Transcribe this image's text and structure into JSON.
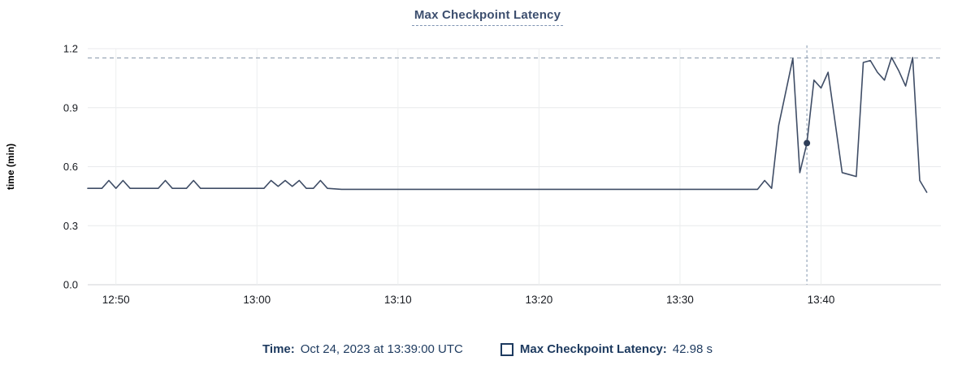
{
  "title": "Max Checkpoint Latency",
  "legend": {
    "time_label": "Time:",
    "time_value": "Oct 24, 2023 at 13:39:00 UTC",
    "series_label": "Max Checkpoint Latency:",
    "series_value": "42.98 s",
    "swatch_style": "hollow-square"
  },
  "colors": {
    "series_line": "#3f4d66",
    "highlight_dot": "#2e3e59",
    "title_text": "#3c4e6e",
    "legend_text": "#1d3a5f",
    "tick_text": "#16191f",
    "grid_horizontal": "#e8eaec",
    "grid_vertical": "#eceeef",
    "axis_line": "#d0d3d6",
    "threshold_dash": "#8494a7",
    "crosshair_dash": "#9fadbf"
  },
  "chart_data": {
    "type": "line",
    "title": "Max Checkpoint Latency",
    "xlabel": "",
    "ylabel": "time (min)",
    "ylim": [
      0,
      1.2
    ],
    "yticks": [
      {
        "value": 0.0,
        "label": "0.0"
      },
      {
        "value": 0.3,
        "label": "0.3"
      },
      {
        "value": 0.6,
        "label": "0.6"
      },
      {
        "value": 0.9,
        "label": "0.9"
      },
      {
        "value": 1.2,
        "label": "1.2"
      }
    ],
    "xticks": [
      {
        "time": "12:50:00",
        "label": "12:50"
      },
      {
        "time": "13:00:00",
        "label": "13:00"
      },
      {
        "time": "13:10:00",
        "label": "13:10"
      },
      {
        "time": "13:20:00",
        "label": "13:20"
      },
      {
        "time": "13:30:00",
        "label": "13:30"
      },
      {
        "time": "13:40:00",
        "label": "13:40"
      }
    ],
    "x_domain": {
      "start": "12:48:00",
      "end": "13:48:30"
    },
    "grid": true,
    "legend_position": "bottom",
    "threshold_line_value": 1.153,
    "crosshair_time": "13:39:00",
    "highlight_point": {
      "time": "13:39:00",
      "value": 0.72,
      "display": "42.98 s"
    },
    "series": [
      {
        "name": "Max Checkpoint Latency",
        "unit": "min",
        "points": [
          [
            "12:48:00",
            0.49
          ],
          [
            "12:49:00",
            0.49
          ],
          [
            "12:49:30",
            0.53
          ],
          [
            "12:50:00",
            0.49
          ],
          [
            "12:50:30",
            0.53
          ],
          [
            "12:51:00",
            0.49
          ],
          [
            "12:53:00",
            0.49
          ],
          [
            "12:53:30",
            0.53
          ],
          [
            "12:54:00",
            0.49
          ],
          [
            "12:55:00",
            0.49
          ],
          [
            "12:55:30",
            0.53
          ],
          [
            "12:56:00",
            0.49
          ],
          [
            "13:00:30",
            0.49
          ],
          [
            "13:01:00",
            0.53
          ],
          [
            "13:01:30",
            0.5
          ],
          [
            "13:02:00",
            0.53
          ],
          [
            "13:02:30",
            0.5
          ],
          [
            "13:03:00",
            0.53
          ],
          [
            "13:03:30",
            0.49
          ],
          [
            "13:04:00",
            0.49
          ],
          [
            "13:04:30",
            0.53
          ],
          [
            "13:05:00",
            0.49
          ],
          [
            "13:06:00",
            0.485
          ],
          [
            "13:35:30",
            0.485
          ],
          [
            "13:36:00",
            0.53
          ],
          [
            "13:36:30",
            0.49
          ],
          [
            "13:37:00",
            0.81
          ],
          [
            "13:38:00",
            1.15
          ],
          [
            "13:38:30",
            0.57
          ],
          [
            "13:39:00",
            0.72
          ],
          [
            "13:39:30",
            1.04
          ],
          [
            "13:40:00",
            1.0
          ],
          [
            "13:40:30",
            1.08
          ],
          [
            "13:41:30",
            0.57
          ],
          [
            "13:42:00",
            0.56
          ],
          [
            "13:42:30",
            0.55
          ],
          [
            "13:43:00",
            1.13
          ],
          [
            "13:43:30",
            1.14
          ],
          [
            "13:44:00",
            1.08
          ],
          [
            "13:44:30",
            1.04
          ],
          [
            "13:45:00",
            1.155
          ],
          [
            "13:45:30",
            1.09
          ],
          [
            "13:46:00",
            1.01
          ],
          [
            "13:46:30",
            1.155
          ],
          [
            "13:47:00",
            0.53
          ],
          [
            "13:47:30",
            0.47
          ]
        ]
      }
    ]
  }
}
